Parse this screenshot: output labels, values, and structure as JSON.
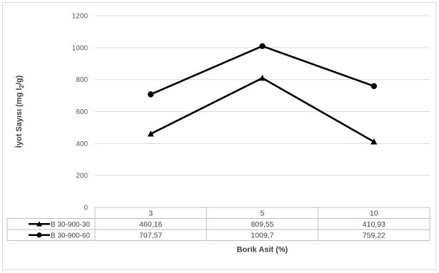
{
  "chart_data": {
    "type": "line",
    "categories": [
      "3",
      "5",
      "10"
    ],
    "series": [
      {
        "name": "B 30-900-30",
        "values": [
          460.16,
          809.55,
          410.93
        ],
        "value_labels": [
          "460,16",
          "809,55",
          "410,93"
        ],
        "marker": "triangle",
        "color": "#000000"
      },
      {
        "name": "B 30-900-60",
        "values": [
          707.57,
          1009.7,
          759.22
        ],
        "value_labels": [
          "707,57",
          "1009,7",
          "759,22"
        ],
        "marker": "circle",
        "color": "#000000"
      }
    ],
    "ylabel": "İyot Sayısı (mg I2/g)",
    "ylabel_parts": {
      "main": "İyot Sayısı (mg I",
      "sub": "2",
      "end": "/g)"
    },
    "xlabel": "Borik Asit (%)",
    "ylim": [
      0,
      1200
    ],
    "yticks": [
      0,
      200,
      400,
      600,
      800,
      1000,
      1200
    ],
    "grid": true,
    "legend": "data-table"
  }
}
